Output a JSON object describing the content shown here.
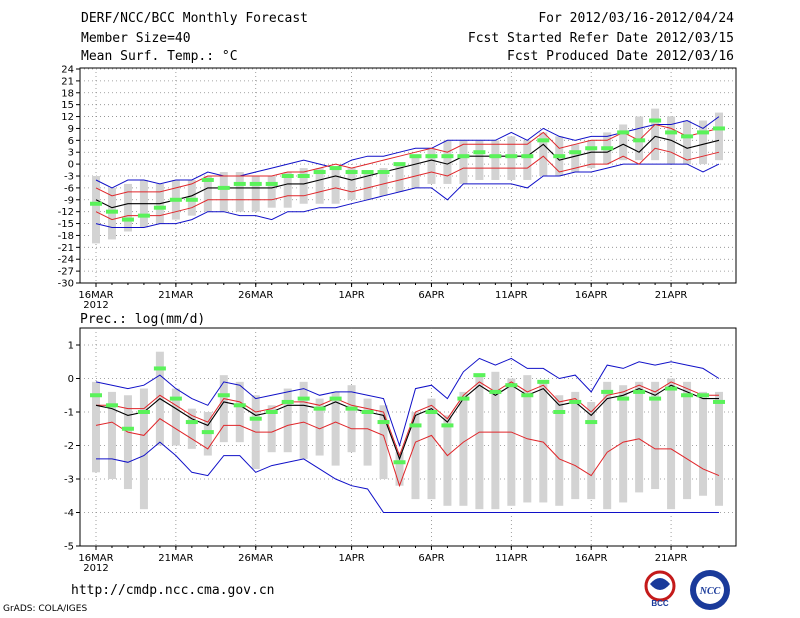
{
  "header": {
    "title": "DERF/NCC/BCC Monthly Forecast",
    "member": "Member Size=40",
    "variable": "Mean Surf. Temp.: °C",
    "period": "For 2012/03/16-2012/04/24",
    "started": "Fcst Started Refer Date 2012/03/15",
    "produced": "Fcst Produced Date 2012/03/16"
  },
  "footer": {
    "url": "http://cmdp.ncc.cma.gov.cn",
    "credit": "GrADS: COLA/IGES",
    "logo_bcc": "BCC",
    "logo_ncc": "NCC"
  },
  "colors": {
    "ensemble_bar": "#d3d3d3",
    "observed_mark": "#5af25a",
    "mean": "#000000",
    "inner_band": "#e0262a",
    "outer_band": "#1010c8",
    "grid": "#888888"
  },
  "chart_data": [
    {
      "type": "line",
      "title": "Mean Surf. Temp.: °C",
      "x_ticks": [
        "16MAR",
        "21MAR",
        "26MAR",
        "1APR",
        "6APR",
        "11APR",
        "16APR",
        "21APR"
      ],
      "x_tick_index": [
        0,
        5,
        10,
        16,
        21,
        26,
        31,
        36
      ],
      "year_label": "2012",
      "ylim": [
        -30,
        24
      ],
      "yticks": [
        24,
        21,
        18,
        15,
        12,
        9,
        6,
        3,
        0,
        -3,
        -6,
        -9,
        -12,
        -15,
        -18,
        -21,
        -24,
        -27,
        -30
      ],
      "days": 40,
      "bar_top": [
        -3,
        -6,
        -5,
        -4,
        -5,
        -4,
        -4,
        -3,
        -2,
        -2,
        -3,
        -3,
        -2,
        -1,
        -1,
        -1,
        -1,
        -2,
        -1,
        0,
        2,
        4,
        6,
        6,
        6,
        6,
        7,
        6,
        8,
        7,
        5,
        6,
        8,
        10,
        12,
        14,
        12,
        11,
        11,
        13
      ],
      "bar_bottom": [
        -20,
        -19,
        -17,
        -16,
        -15,
        -14,
        -13,
        -12,
        -12,
        -12,
        -12,
        -11,
        -11,
        -10,
        -10,
        -10,
        -9,
        -9,
        -8,
        -7,
        -6,
        -5,
        -5,
        -5,
        -4,
        -4,
        -4,
        -4,
        -3,
        -3,
        -2,
        -1,
        0,
        1,
        1,
        1,
        0,
        0,
        0,
        1
      ],
      "observed": [
        -10,
        -12,
        -14,
        -13,
        -11,
        -9,
        -9,
        -4,
        -6,
        -5,
        -5,
        -5,
        -3,
        -3,
        -2,
        -1,
        -2,
        -2,
        -2,
        0,
        2,
        2,
        2,
        2,
        3,
        2,
        2,
        2,
        6,
        2,
        3,
        4,
        4,
        8,
        6,
        11,
        8,
        7,
        8,
        9
      ],
      "mean": [
        -9,
        -11,
        -10,
        -10,
        -10,
        -9,
        -8,
        -6,
        -6,
        -6,
        -6,
        -6,
        -5,
        -5,
        -4,
        -3,
        -4,
        -3,
        -2,
        -1,
        0,
        1,
        0,
        2,
        2,
        2,
        2,
        2,
        5,
        1,
        2,
        3,
        3,
        5,
        3,
        7,
        6,
        4,
        5,
        6
      ],
      "inner_upper": [
        -6,
        -8,
        -7,
        -7,
        -7,
        -6,
        -5,
        -3,
        -3,
        -3,
        -3,
        -3,
        -2,
        -2,
        -1,
        0,
        -1,
        0,
        1,
        2,
        3,
        4,
        3,
        5,
        5,
        5,
        5,
        5,
        8,
        4,
        5,
        6,
        6,
        8,
        6,
        10,
        9,
        7,
        8,
        9
      ],
      "inner_lower": [
        -12,
        -14,
        -13,
        -13,
        -13,
        -12,
        -11,
        -9,
        -9,
        -9,
        -9,
        -9,
        -8,
        -8,
        -7,
        -6,
        -7,
        -6,
        -5,
        -4,
        -3,
        -2,
        -3,
        -1,
        -1,
        -1,
        -1,
        -1,
        2,
        -2,
        -1,
        0,
        0,
        2,
        0,
        4,
        3,
        1,
        2,
        3
      ],
      "outer_upper": [
        -4,
        -6,
        -4,
        -4,
        -5,
        -4,
        -4,
        -2,
        -3,
        -3,
        -2,
        -1,
        0,
        1,
        0,
        -1,
        1,
        2,
        2,
        3,
        4,
        4,
        6,
        6,
        6,
        6,
        8,
        6,
        9,
        7,
        6,
        7,
        7,
        8,
        9,
        10,
        10,
        11,
        9,
        12
      ],
      "outer_lower": [
        -15,
        -16,
        -16,
        -16,
        -15,
        -15,
        -14,
        -12,
        -12,
        -13,
        -13,
        -14,
        -12,
        -12,
        -11,
        -11,
        -10,
        -9,
        -8,
        -7,
        -6,
        -6,
        -9,
        -5,
        -5,
        -5,
        -5,
        -6,
        -3,
        -3,
        -2,
        -2,
        -1,
        0,
        0,
        0,
        0,
        0,
        -2,
        0
      ]
    },
    {
      "type": "line",
      "title": "Prec.: log(mm/d)",
      "x_ticks": [
        "16MAR",
        "21MAR",
        "26MAR",
        "1APR",
        "6APR",
        "11APR",
        "16APR",
        "21APR"
      ],
      "x_tick_index": [
        0,
        5,
        10,
        16,
        21,
        26,
        31,
        36
      ],
      "year_label": "2012",
      "ylim": [
        -5,
        1.5
      ],
      "yticks": [
        1,
        0,
        -1,
        -2,
        -3,
        -4,
        -5
      ],
      "days": 40,
      "bar_top": [
        -0.1,
        -0.4,
        -0.5,
        -0.3,
        0.8,
        -0.3,
        -0.9,
        -1.0,
        0.1,
        -0.1,
        -0.5,
        -0.8,
        -0.3,
        -0.1,
        -0.6,
        -0.4,
        -0.2,
        -0.6,
        -0.8,
        -2.2,
        -1.0,
        -0.6,
        -1.1,
        -0.4,
        0.1,
        0.2,
        0.0,
        0.1,
        -0.1,
        -0.5,
        -0.4,
        -0.7,
        -0.1,
        -0.2,
        -0.1,
        -0.1,
        0.0,
        -0.1,
        -0.4,
        -0.4
      ],
      "bar_bottom": [
        -2.8,
        -3.0,
        -3.3,
        -3.9,
        -2.0,
        -2.0,
        -2.1,
        -2.3,
        -1.9,
        -1.9,
        -2.7,
        -2.2,
        -2.2,
        -2.4,
        -2.3,
        -2.6,
        -2.2,
        -2.6,
        -3.0,
        -3.2,
        -3.6,
        -3.6,
        -3.8,
        -3.8,
        -3.9,
        -3.9,
        -3.8,
        -3.7,
        -3.7,
        -3.8,
        -3.6,
        -3.6,
        -3.9,
        -3.7,
        -3.4,
        -3.3,
        -3.9,
        -3.6,
        -3.5,
        -3.8
      ],
      "observed": [
        -0.5,
        -0.8,
        -1.5,
        -1.0,
        0.3,
        -0.6,
        -1.3,
        -1.6,
        -0.5,
        -0.8,
        -1.2,
        -1.0,
        -0.7,
        -0.6,
        -0.9,
        -0.6,
        -0.9,
        -1.0,
        -1.3,
        -2.5,
        -1.4,
        -1.0,
        -1.4,
        -0.6,
        0.1,
        -0.4,
        -0.2,
        -0.5,
        -0.1,
        -1.0,
        -0.7,
        -1.3,
        -0.4,
        -0.6,
        -0.4,
        -0.6,
        -0.3,
        -0.5,
        -0.5,
        -0.7
      ],
      "mean": [
        -0.8,
        -0.9,
        -1.1,
        -1.0,
        -0.6,
        -0.9,
        -1.2,
        -1.4,
        -0.7,
        -0.8,
        -1.1,
        -1.0,
        -0.8,
        -0.8,
        -0.9,
        -0.7,
        -0.9,
        -1.0,
        -1.1,
        -2.4,
        -1.1,
        -0.9,
        -1.3,
        -0.6,
        -0.2,
        -0.5,
        -0.2,
        -0.5,
        -0.3,
        -0.8,
        -0.7,
        -1.1,
        -0.6,
        -0.5,
        -0.3,
        -0.5,
        -0.2,
        -0.4,
        -0.6,
        -0.6
      ],
      "inner_upper": [
        -0.8,
        -0.8,
        -0.9,
        -0.9,
        -0.5,
        -0.8,
        -1.1,
        -1.3,
        -0.6,
        -0.7,
        -1.0,
        -0.9,
        -0.7,
        -0.7,
        -0.8,
        -0.6,
        -0.8,
        -0.9,
        -1.0,
        -2.3,
        -1.0,
        -0.8,
        -1.2,
        -0.5,
        -0.1,
        -0.4,
        -0.1,
        -0.4,
        -0.2,
        -0.7,
        -0.6,
        -1.0,
        -0.5,
        -0.4,
        -0.2,
        -0.4,
        -0.1,
        -0.3,
        -0.5,
        -0.5
      ],
      "inner_lower": [
        -1.4,
        -1.3,
        -1.6,
        -1.7,
        -1.2,
        -1.5,
        -1.8,
        -2.1,
        -1.4,
        -1.4,
        -1.6,
        -1.6,
        -1.4,
        -1.3,
        -1.5,
        -1.3,
        -1.5,
        -1.5,
        -1.7,
        -3.2,
        -1.9,
        -1.7,
        -2.3,
        -1.9,
        -1.6,
        -1.6,
        -1.6,
        -1.8,
        -1.9,
        -2.4,
        -2.6,
        -2.9,
        -2.2,
        -1.9,
        -1.8,
        -2.1,
        -2.1,
        -2.4,
        -2.7,
        -2.9
      ],
      "outer_upper": [
        -0.1,
        -0.2,
        -0.3,
        -0.2,
        0.1,
        -0.3,
        -0.6,
        -0.8,
        -0.1,
        -0.2,
        -0.6,
        -0.5,
        -0.4,
        -0.3,
        -0.5,
        -0.4,
        -0.4,
        -0.5,
        -0.6,
        -2.0,
        -0.3,
        -0.2,
        -0.6,
        0.2,
        0.6,
        0.4,
        0.6,
        0.3,
        0.3,
        0.0,
        0.1,
        -0.4,
        0.4,
        0.3,
        0.5,
        0.4,
        0.5,
        0.4,
        0.3,
        0.0
      ],
      "outer_lower": [
        -2.4,
        -2.4,
        -2.5,
        -2.3,
        -1.9,
        -2.3,
        -2.8,
        -2.9,
        -2.3,
        -2.3,
        -2.8,
        -2.6,
        -2.5,
        -2.4,
        -2.7,
        -3.0,
        -3.2,
        -3.3,
        -4.0,
        -4.0,
        -4.0,
        -4.0,
        -4.0,
        -4.0,
        -4.0,
        -4.0,
        -4.0,
        -4.0,
        -4.0,
        -4.0,
        -4.0,
        -4.0,
        -4.0,
        -4.0,
        -4.0,
        -4.0,
        -4.0,
        -4.0,
        -4.0,
        -4.0
      ]
    }
  ]
}
